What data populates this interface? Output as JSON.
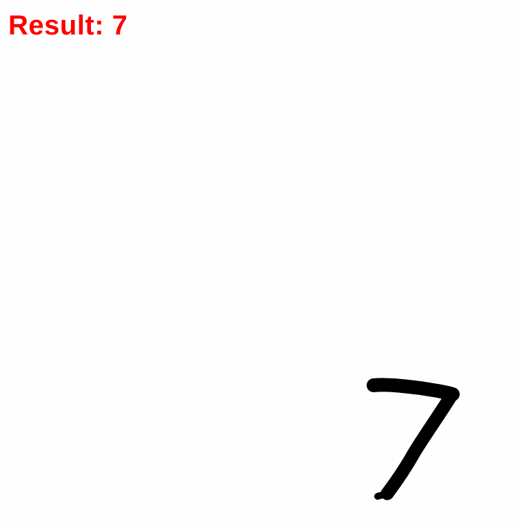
{
  "result": {
    "text": "Result: 7",
    "color": "#ff0000"
  },
  "drawing": {
    "background": "#fefefe",
    "ink_color": "#000000"
  }
}
